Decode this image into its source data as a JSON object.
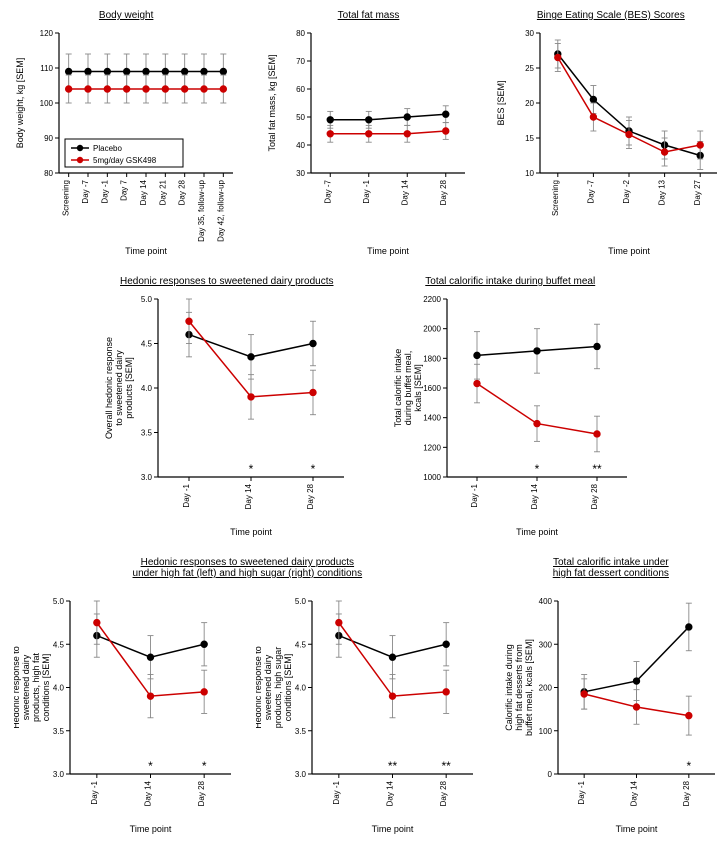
{
  "colors": {
    "placebo": "#000000",
    "drug": "#cc0000",
    "axis": "#000000",
    "error": "#888888",
    "bg": "#ffffff"
  },
  "legend": {
    "placebo": "Placebo",
    "drug": "5mg/day GSK498"
  },
  "xlabel": "Time point",
  "row1": {
    "bodyweight": {
      "title": "Body weight",
      "ylabel": "Body weight, kg [SEM]",
      "ylim": [
        80,
        120
      ],
      "ytick_step": 10,
      "categories": [
        "Screening",
        "Day -7",
        "Day -1",
        "Day 7",
        "Day 14",
        "Day 21",
        "Day 28",
        "Day 35, follow-up",
        "Day 42, follow-up"
      ],
      "placebo": {
        "y": [
          109,
          109,
          109,
          109,
          109,
          109,
          109,
          109,
          109
        ],
        "err": [
          5,
          5,
          5,
          5,
          5,
          5,
          5,
          5,
          5
        ]
      },
      "drug": {
        "y": [
          104,
          104,
          104,
          104,
          104,
          104,
          104,
          104,
          104
        ],
        "err": [
          4,
          4,
          4,
          4,
          4,
          4,
          4,
          4,
          4
        ]
      }
    },
    "fatmass": {
      "title": "Total fat mass",
      "ylabel": "Total fat mass, kg [SEM]",
      "ylim": [
        30,
        80
      ],
      "ytick_step": 10,
      "categories": [
        "Day -7",
        "Day -1",
        "Day 14",
        "Day 28"
      ],
      "placebo": {
        "y": [
          49,
          49,
          50,
          51
        ],
        "err": [
          3,
          3,
          3,
          3
        ]
      },
      "drug": {
        "y": [
          44,
          44,
          44,
          45
        ],
        "err": [
          3,
          3,
          3,
          3
        ]
      }
    },
    "bes": {
      "title": "Binge Eating Scale (BES) Scores",
      "ylabel": "BES [SEM]",
      "ylim": [
        10,
        30
      ],
      "ytick_step": 5,
      "categories": [
        "Screening",
        "Day -7",
        "Day -2",
        "Day 13",
        "Day 27"
      ],
      "placebo": {
        "y": [
          27,
          20.5,
          16,
          14,
          12.5
        ],
        "err": [
          2,
          2,
          2,
          2,
          2
        ]
      },
      "drug": {
        "y": [
          26.5,
          18,
          15.5,
          13,
          14
        ],
        "err": [
          2,
          2,
          2,
          2,
          2
        ]
      }
    }
  },
  "row2": {
    "hedonic": {
      "title": "Hedonic responses to sweetened dairy products",
      "ylabel": "Overall hedonic response to sweetened dairy products [SEM]",
      "ylim": [
        3.0,
        5.0
      ],
      "ytick_step": 0.5,
      "categories": [
        "Day -1",
        "Day 14",
        "Day 28"
      ],
      "placebo": {
        "y": [
          4.6,
          4.35,
          4.5
        ],
        "err": [
          0.25,
          0.25,
          0.25
        ]
      },
      "drug": {
        "y": [
          4.75,
          3.9,
          3.95
        ],
        "err": [
          0.25,
          0.25,
          0.25
        ]
      },
      "sig": {
        "14": "*",
        "28": "*"
      }
    },
    "calorific": {
      "title": "Total calorific intake during buffet meal",
      "ylabel": "Total calorific intake during buffet meal, kcals [SEM]",
      "ylim": [
        1000,
        2200
      ],
      "ytick_step": 200,
      "categories": [
        "Day -1",
        "Day 14",
        "Day 28"
      ],
      "placebo": {
        "y": [
          1820,
          1850,
          1880
        ],
        "err": [
          160,
          150,
          150
        ]
      },
      "drug": {
        "y": [
          1630,
          1360,
          1290
        ],
        "err": [
          130,
          120,
          120
        ]
      },
      "sig": {
        "14": "*",
        "28": "**"
      }
    }
  },
  "row3": {
    "title_combined": "Hedonic responses to sweetened dairy products under high fat (left) and high sugar (right) conditions",
    "title_right": "Total calorific intake under high fat dessert conditions",
    "highfat": {
      "ylabel": "Hedonic response to sweetened dairy products, high fat conditions [SEM]",
      "ylim": [
        3.0,
        5.0
      ],
      "ytick_step": 0.5,
      "categories": [
        "Day -1",
        "Day 14",
        "Day 28"
      ],
      "placebo": {
        "y": [
          4.6,
          4.35,
          4.5
        ],
        "err": [
          0.25,
          0.25,
          0.25
        ]
      },
      "drug": {
        "y": [
          4.75,
          3.9,
          3.95
        ],
        "err": [
          0.25,
          0.25,
          0.25
        ]
      },
      "sig": {
        "14": "*",
        "28": "*"
      }
    },
    "highsugar": {
      "ylabel": "Hedonic response to sweetened dairy products, high sugar conditions [SEM]",
      "ylim": [
        3.0,
        5.0
      ],
      "ytick_step": 0.5,
      "categories": [
        "Day -1",
        "Day 14",
        "Day 28"
      ],
      "placebo": {
        "y": [
          4.6,
          4.35,
          4.5
        ],
        "err": [
          0.25,
          0.25,
          0.25
        ]
      },
      "drug": {
        "y": [
          4.75,
          3.9,
          3.95
        ],
        "err": [
          0.25,
          0.25,
          0.25
        ]
      },
      "sig": {
        "14": "**",
        "28": "**"
      }
    },
    "dessert": {
      "ylabel": "Calorific intake during high fat desserts from buffet meal, kcals [SEM]",
      "ylim": [
        0,
        400
      ],
      "ytick_step": 100,
      "categories": [
        "Day -1",
        "Day 14",
        "Day 28"
      ],
      "placebo": {
        "y": [
          190,
          215,
          340
        ],
        "err": [
          40,
          45,
          55
        ]
      },
      "drug": {
        "y": [
          185,
          155,
          135
        ],
        "err": [
          35,
          40,
          45
        ]
      },
      "sig": {
        "28": "*"
      }
    }
  },
  "style": {
    "marker_r": 3.2,
    "line_w": 1.5,
    "error_w": 0.9,
    "cap_w": 3,
    "axis_w": 1.2,
    "tick_len": 4,
    "title_fontsize": 10,
    "label_fontsize": 9,
    "tick_fontsize": 8
  }
}
